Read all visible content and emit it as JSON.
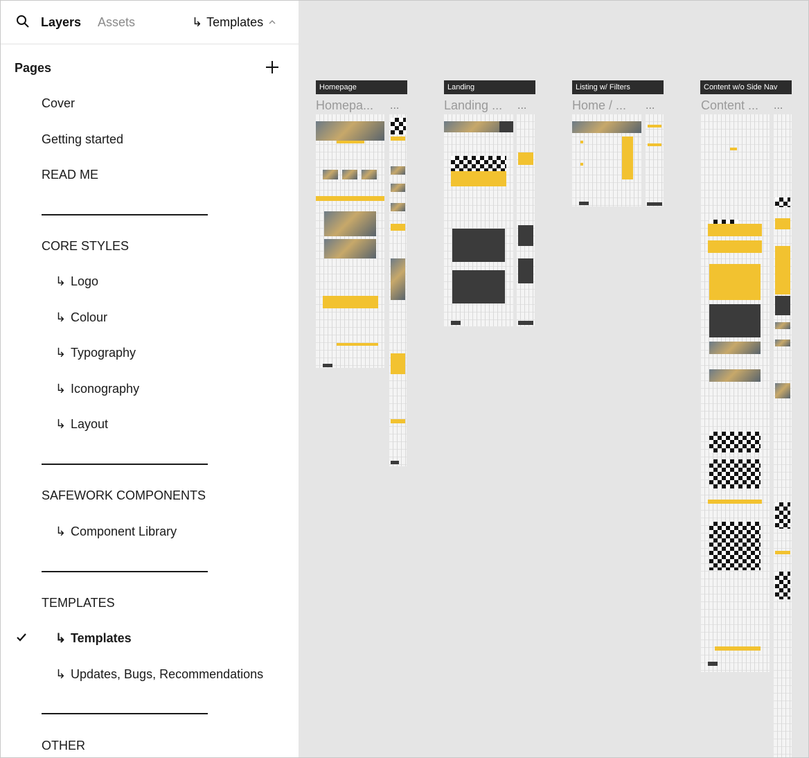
{
  "header": {
    "tabs": [
      "Layers",
      "Assets"
    ],
    "current_page": "Templates"
  },
  "pages": {
    "title": "Pages",
    "items": [
      {
        "label": "Cover"
      },
      {
        "label": "Getting started"
      },
      {
        "label": "READ ME"
      },
      {
        "label": "CORE STYLES"
      },
      {
        "label": "Logo"
      },
      {
        "label": "Colour"
      },
      {
        "label": "Typography"
      },
      {
        "label": "Iconography"
      },
      {
        "label": "Layout"
      },
      {
        "label": "SAFEWORK COMPONENTS"
      },
      {
        "label": "Component Library"
      },
      {
        "label": "TEMPLATES"
      },
      {
        "label": "Templates",
        "selected": true
      },
      {
        "label": "Updates, Bugs, Recommendations"
      },
      {
        "label": "OTHER"
      }
    ]
  },
  "canvas": {
    "frames": [
      {
        "label": "Homepage",
        "ghost": "Homepa...",
        "dots": "..."
      },
      {
        "label": "Landing",
        "ghost": "Landing ...",
        "dots": "..."
      },
      {
        "label": "Listing w/ Filters",
        "ghost": "Home / ...",
        "dots": "..."
      },
      {
        "label": "Content w/o Side Nav",
        "ghost": "Content ...",
        "dots": "..."
      }
    ]
  },
  "colors": {
    "accent": "#f2c230",
    "label_bg": "#2c2c2c",
    "canvas_bg": "#e5e5e5"
  }
}
